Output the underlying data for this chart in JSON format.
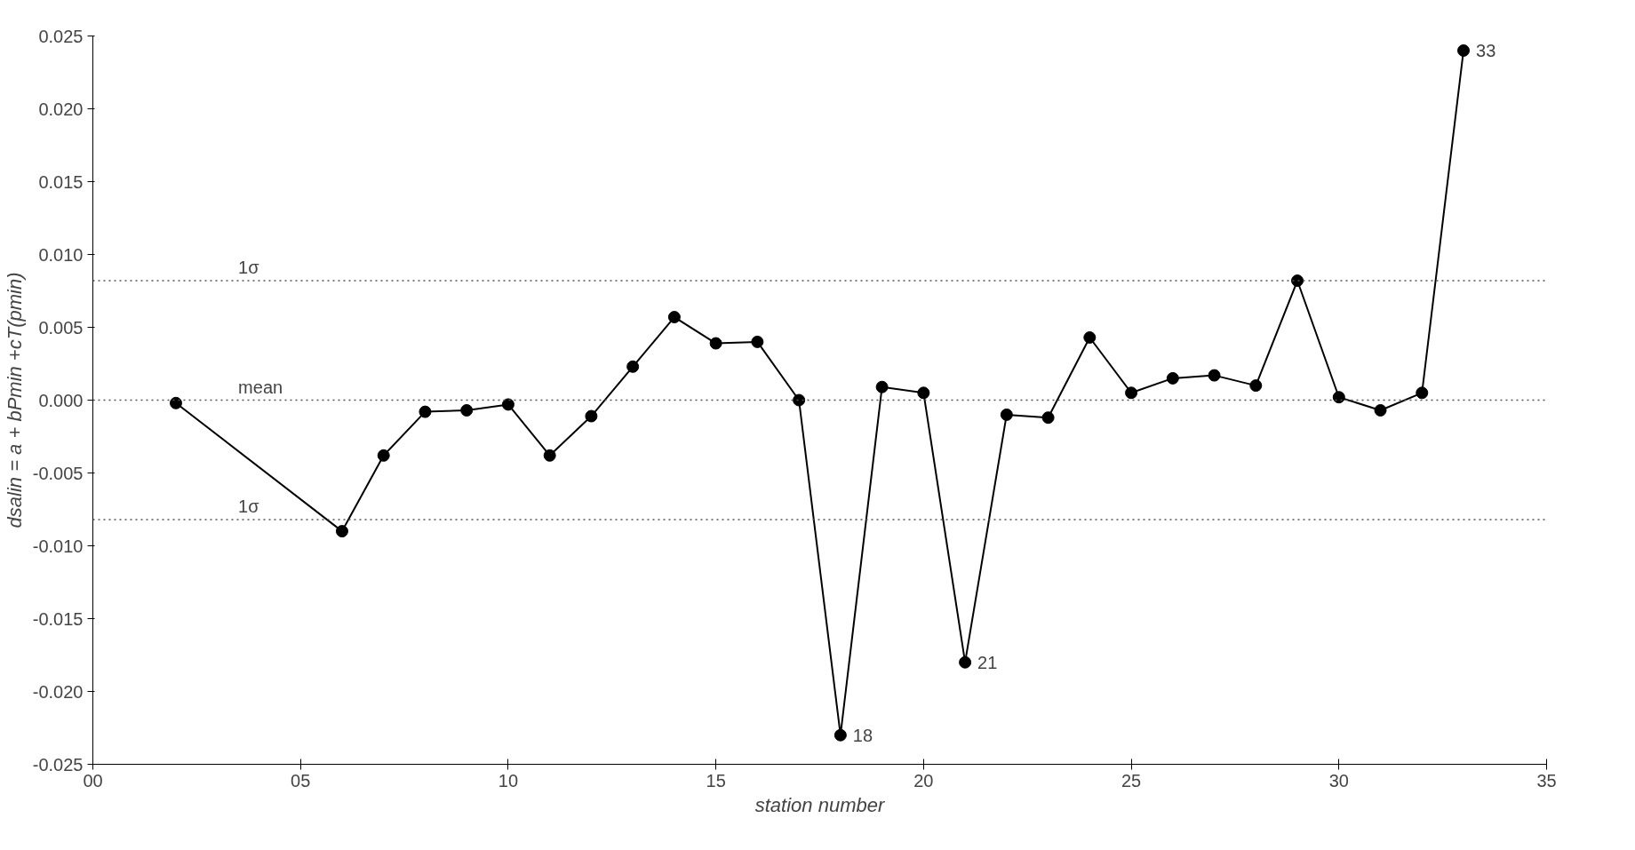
{
  "chart_data": {
    "type": "line",
    "xlabel": "station number",
    "ylabel": "dsalin = a + bPmin +cT(pmin)",
    "x": [
      2,
      6,
      7,
      8,
      9,
      10,
      11,
      12,
      13,
      14,
      15,
      16,
      17,
      18,
      19,
      20,
      21,
      22,
      23,
      24,
      25,
      26,
      27,
      28,
      29,
      30,
      31,
      32,
      33
    ],
    "series": [
      {
        "color": "#000000",
        "values": [
          -0.0002,
          -0.009,
          -0.0038,
          -0.0008,
          -0.0007,
          -0.0003,
          -0.0038,
          -0.0011,
          0.0023,
          0.0057,
          0.0039,
          0.004,
          0.0,
          -0.023,
          0.0009,
          0.0005,
          -0.018,
          -0.001,
          -0.0012,
          0.0043,
          0.0005,
          0.0015,
          0.0017,
          0.001,
          0.0082,
          0.0002,
          -0.0007,
          0.0005,
          0.024
        ]
      }
    ],
    "marker": "circle",
    "line_style": "solid",
    "grid": false,
    "xlim": [
      0,
      35
    ],
    "ylim": [
      -0.025,
      0.025
    ],
    "xticks": [
      {
        "value": 0,
        "label": "00"
      },
      {
        "value": 5,
        "label": "05"
      },
      {
        "value": 10,
        "label": "10"
      },
      {
        "value": 15,
        "label": "15"
      },
      {
        "value": 20,
        "label": "20"
      },
      {
        "value": 25,
        "label": "25"
      },
      {
        "value": 30,
        "label": "30"
      },
      {
        "value": 35,
        "label": "35"
      }
    ],
    "yticks": [
      {
        "value": -0.025,
        "label": "-0.025"
      },
      {
        "value": -0.02,
        "label": "-0.020"
      },
      {
        "value": -0.015,
        "label": "-0.015"
      },
      {
        "value": -0.01,
        "label": "-0.010"
      },
      {
        "value": -0.005,
        "label": "-0.005"
      },
      {
        "value": 0,
        "label": "0.000"
      },
      {
        "value": 0.005,
        "label": "0.005"
      },
      {
        "value": 0.01,
        "label": "0.010"
      },
      {
        "value": 0.015,
        "label": "0.015"
      },
      {
        "value": 0.02,
        "label": "0.020"
      },
      {
        "value": 0.025,
        "label": "0.025"
      }
    ],
    "ref_lines": [
      {
        "axis": "y",
        "value": 0.0082,
        "label": "1σ",
        "line_style": "dotted"
      },
      {
        "axis": "y",
        "value": 0,
        "label": "mean",
        "line_style": "dotted"
      },
      {
        "axis": "y",
        "value": -0.0082,
        "label": "1σ",
        "line_style": "dotted"
      }
    ],
    "annotations": [
      {
        "text": "18",
        "x": 18,
        "y": -0.023
      },
      {
        "text": "21",
        "x": 21,
        "y": -0.018
      },
      {
        "text": "33",
        "x": 33,
        "y": 0.024
      }
    ]
  }
}
